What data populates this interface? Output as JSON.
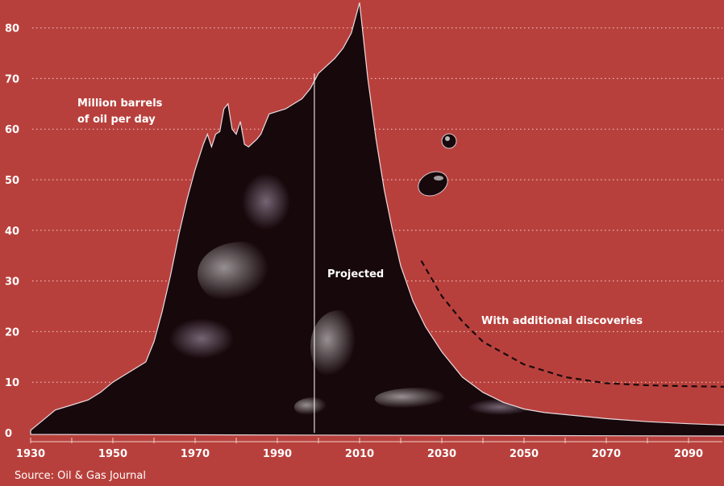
{
  "chart_data": {
    "type": "area",
    "title": "",
    "ylabel": "Million barrels\nof oil per day",
    "xlim": [
      1930,
      2100
    ],
    "ylim": [
      0,
      85
    ],
    "grid": true,
    "x_ticks": [
      1930,
      1950,
      1970,
      1990,
      2010,
      2030,
      2050,
      2070,
      2090
    ],
    "y_ticks": [
      0,
      10,
      20,
      30,
      40,
      50,
      60,
      70,
      80
    ],
    "projection_start": 1999,
    "series": [
      {
        "name": "",
        "style": "oil-blob",
        "x": [
          1930,
          1933,
          1936,
          1940,
          1944,
          1947,
          1950,
          1952,
          1955,
          1958,
          1960,
          1962,
          1964,
          1966,
          1968,
          1970,
          1972,
          1973,
          1974,
          1975,
          1976,
          1977,
          1978,
          1979,
          1980,
          1981,
          1982,
          1983,
          1985,
          1986,
          1988,
          1990,
          1992,
          1994,
          1996,
          1998,
          2000,
          2002,
          2004,
          2006,
          2008,
          2010,
          2012,
          2014,
          2016,
          2018,
          2020,
          2023,
          2026,
          2030,
          2035,
          2040,
          2045,
          2050,
          2055,
          2060,
          2070,
          2080,
          2090,
          2100
        ],
        "values": [
          0.5,
          2.5,
          4.5,
          5.5,
          6.5,
          8,
          10,
          11,
          12.5,
          14,
          18,
          24,
          31,
          39,
          46,
          52,
          57,
          59,
          56.5,
          59,
          59.5,
          64,
          65,
          60,
          59,
          61.5,
          57,
          56.5,
          58,
          59,
          63,
          63.5,
          64,
          65,
          66,
          68,
          71,
          72.5,
          74,
          76,
          79,
          85,
          70,
          58,
          48,
          40,
          33,
          26,
          21,
          16,
          11,
          8,
          6,
          4.7,
          4,
          3.6,
          2.8,
          2.2,
          1.8,
          1.5
        ]
      },
      {
        "name": "With additional discoveries",
        "style": "dashed",
        "x": [
          2025,
          2030,
          2035,
          2040,
          2050,
          2060,
          2070,
          2080,
          2090,
          2100
        ],
        "values": [
          34,
          27,
          22,
          18,
          13.5,
          11,
          9.8,
          9.4,
          9.2,
          9.1
        ]
      }
    ],
    "annotations": {
      "unit_label_line1": "Million barrels",
      "unit_label_line2": "of oil per day",
      "projected": "Projected",
      "with_additional_discoveries": "With additional discoveries"
    },
    "source": "Source: Oil & Gas Journal"
  },
  "colors": {
    "background": "#b8403c",
    "oil": "#17080c",
    "grid": "#f0cfc9",
    "text": "#ffffff"
  }
}
